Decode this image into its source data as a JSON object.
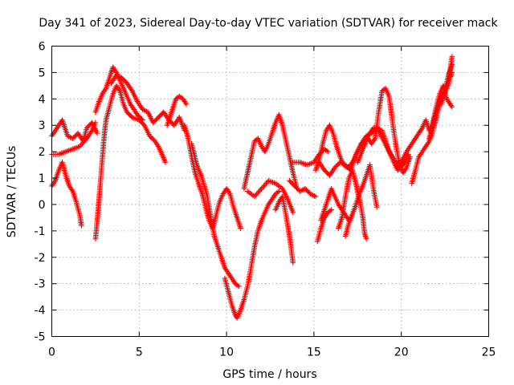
{
  "chart_data": {
    "type": "scatter",
    "title": "Day 341 of 2023, Sidereal Day-to-day VTEC variation (SDTVAR) for receiver mack",
    "xlabel": "GPS time / hours",
    "ylabel": "SDTVAR / TECUs",
    "xlim": [
      0,
      25
    ],
    "ylim": [
      -5,
      6
    ],
    "xticks": [
      0,
      5,
      10,
      15,
      20,
      25
    ],
    "yticks": [
      -5,
      -4,
      -3,
      -2,
      -1,
      0,
      1,
      2,
      3,
      4,
      5,
      6
    ],
    "grid": true,
    "marker": "+",
    "color": "#ff0000",
    "series": [
      {
        "points": [
          [
            0.0,
            2.6
          ],
          [
            0.3,
            2.9
          ],
          [
            0.6,
            3.2
          ],
          [
            0.9,
            2.6
          ],
          [
            1.2,
            2.5
          ],
          [
            1.5,
            2.7
          ],
          [
            1.8,
            2.4
          ],
          [
            2.0,
            2.9
          ],
          [
            2.3,
            3.1
          ],
          [
            2.6,
            2.7
          ]
        ]
      },
      {
        "points": [
          [
            0.0,
            0.7
          ],
          [
            0.2,
            0.9
          ],
          [
            0.4,
            1.3
          ],
          [
            0.6,
            1.6
          ],
          [
            0.8,
            1.1
          ],
          [
            1.0,
            0.7
          ],
          [
            1.2,
            0.5
          ],
          [
            1.4,
            0.1
          ],
          [
            1.6,
            -0.4
          ],
          [
            1.7,
            -0.8
          ]
        ]
      },
      {
        "points": [
          [
            0.0,
            1.9
          ],
          [
            0.4,
            1.9
          ],
          [
            0.8,
            2.0
          ],
          [
            1.2,
            2.1
          ],
          [
            1.6,
            2.2
          ],
          [
            2.0,
            2.5
          ],
          [
            2.3,
            2.8
          ],
          [
            2.5,
            3.1
          ]
        ]
      },
      {
        "points": [
          [
            2.5,
            -1.3
          ],
          [
            2.6,
            -0.6
          ],
          [
            2.7,
            0.2
          ],
          [
            2.8,
            1.0
          ],
          [
            2.9,
            1.8
          ],
          [
            3.0,
            2.6
          ],
          [
            3.1,
            3.2
          ],
          [
            3.3,
            3.7
          ],
          [
            3.5,
            4.2
          ],
          [
            3.7,
            4.5
          ],
          [
            3.9,
            4.3
          ],
          [
            4.1,
            3.8
          ],
          [
            4.3,
            3.5
          ],
          [
            4.6,
            3.3
          ],
          [
            5.0,
            3.2
          ],
          [
            5.3,
            3.0
          ],
          [
            5.6,
            2.6
          ],
          [
            5.9,
            2.4
          ],
          [
            6.1,
            2.2
          ],
          [
            6.3,
            1.9
          ],
          [
            6.5,
            1.6
          ]
        ]
      },
      {
        "points": [
          [
            2.5,
            3.5
          ],
          [
            2.7,
            3.9
          ],
          [
            2.9,
            4.2
          ],
          [
            3.1,
            4.4
          ],
          [
            3.3,
            4.8
          ],
          [
            3.5,
            5.2
          ],
          [
            3.7,
            5.0
          ],
          [
            3.9,
            4.7
          ],
          [
            4.1,
            4.4
          ],
          [
            4.3,
            4.1
          ],
          [
            4.5,
            3.8
          ],
          [
            4.7,
            3.6
          ],
          [
            4.9,
            3.4
          ],
          [
            5.2,
            3.2
          ]
        ]
      },
      {
        "points": [
          [
            3.4,
            4.6
          ],
          [
            3.7,
            4.9
          ],
          [
            4.0,
            4.8
          ],
          [
            4.3,
            4.6
          ],
          [
            4.6,
            4.3
          ],
          [
            4.9,
            3.9
          ],
          [
            5.2,
            3.6
          ],
          [
            5.5,
            3.5
          ],
          [
            5.8,
            3.1
          ],
          [
            6.1,
            3.3
          ],
          [
            6.4,
            3.5
          ],
          [
            6.7,
            3.2
          ],
          [
            7.0,
            3.0
          ],
          [
            7.3,
            3.3
          ],
          [
            7.6,
            2.8
          ]
        ]
      },
      {
        "points": [
          [
            6.6,
            3.0
          ],
          [
            6.9,
            3.6
          ],
          [
            7.1,
            4.0
          ],
          [
            7.3,
            4.1
          ],
          [
            7.5,
            4.0
          ],
          [
            7.7,
            3.8
          ]
        ]
      },
      {
        "points": [
          [
            7.6,
            3.0
          ],
          [
            7.8,
            2.5
          ],
          [
            8.0,
            1.8
          ],
          [
            8.2,
            1.2
          ],
          [
            8.4,
            0.8
          ],
          [
            8.6,
            0.4
          ],
          [
            8.8,
            -0.1
          ],
          [
            9.0,
            -0.6
          ],
          [
            9.2,
            -0.9
          ],
          [
            9.4,
            -0.4
          ],
          [
            9.6,
            0.1
          ],
          [
            9.8,
            0.4
          ],
          [
            10.0,
            0.6
          ],
          [
            10.2,
            0.4
          ],
          [
            10.4,
            -0.1
          ],
          [
            10.6,
            -0.5
          ],
          [
            10.8,
            -0.9
          ]
        ]
      },
      {
        "points": [
          [
            8.0,
            2.3
          ],
          [
            8.3,
            1.5
          ],
          [
            8.6,
            1.0
          ],
          [
            8.9,
            0.3
          ],
          [
            9.1,
            -0.5
          ],
          [
            9.3,
            -1.2
          ],
          [
            9.5,
            -1.6
          ],
          [
            9.7,
            -2.0
          ],
          [
            9.9,
            -2.4
          ],
          [
            10.1,
            -2.6
          ],
          [
            10.3,
            -2.8
          ],
          [
            10.5,
            -3.0
          ],
          [
            10.7,
            -3.1
          ]
        ]
      },
      {
        "points": [
          [
            9.9,
            -2.8
          ],
          [
            10.1,
            -3.3
          ],
          [
            10.3,
            -3.8
          ],
          [
            10.5,
            -4.2
          ],
          [
            10.6,
            -4.3
          ],
          [
            10.8,
            -4.0
          ],
          [
            11.0,
            -3.6
          ],
          [
            11.2,
            -3.1
          ],
          [
            11.4,
            -2.4
          ],
          [
            11.6,
            -1.6
          ],
          [
            11.8,
            -1.0
          ],
          [
            12.0,
            -0.6
          ],
          [
            12.2,
            -0.3
          ],
          [
            12.4,
            0.0
          ],
          [
            12.6,
            0.2
          ],
          [
            12.8,
            0.4
          ],
          [
            13.0,
            0.5
          ]
        ]
      },
      {
        "points": [
          [
            11.0,
            0.6
          ],
          [
            11.2,
            1.2
          ],
          [
            11.4,
            1.8
          ],
          [
            11.6,
            2.4
          ],
          [
            11.8,
            2.5
          ],
          [
            12.0,
            2.2
          ],
          [
            12.2,
            2.0
          ],
          [
            12.4,
            2.3
          ],
          [
            12.6,
            2.7
          ],
          [
            12.8,
            3.1
          ],
          [
            13.0,
            3.4
          ],
          [
            13.2,
            3.0
          ],
          [
            13.4,
            2.4
          ],
          [
            13.6,
            1.8
          ],
          [
            13.8,
            1.2
          ],
          [
            14.0,
            0.7
          ]
        ]
      },
      {
        "points": [
          [
            11.2,
            0.5
          ],
          [
            11.6,
            0.3
          ],
          [
            12.0,
            0.6
          ],
          [
            12.4,
            0.9
          ],
          [
            12.8,
            0.8
          ],
          [
            13.2,
            0.6
          ],
          [
            13.5,
            0.2
          ],
          [
            13.8,
            -0.3
          ]
        ]
      },
      {
        "points": [
          [
            12.8,
            -0.2
          ],
          [
            13.0,
            0.1
          ],
          [
            13.2,
            0.3
          ],
          [
            13.4,
            -0.4
          ],
          [
            13.6,
            -1.2
          ],
          [
            13.8,
            -2.2
          ]
        ]
      },
      {
        "points": [
          [
            13.8,
            1.6
          ],
          [
            14.2,
            1.6
          ],
          [
            14.6,
            1.5
          ],
          [
            15.0,
            1.6
          ],
          [
            15.3,
            1.9
          ],
          [
            15.6,
            2.1
          ],
          [
            15.8,
            2.0
          ]
        ]
      },
      {
        "points": [
          [
            13.6,
            0.9
          ],
          [
            13.9,
            0.7
          ],
          [
            14.2,
            0.5
          ],
          [
            14.5,
            0.6
          ],
          [
            14.8,
            0.4
          ],
          [
            15.1,
            0.3
          ]
        ]
      },
      {
        "points": [
          [
            15.1,
            1.3
          ],
          [
            15.3,
            1.7
          ],
          [
            15.5,
            2.3
          ],
          [
            15.7,
            2.8
          ],
          [
            15.9,
            3.0
          ],
          [
            16.1,
            2.7
          ],
          [
            16.3,
            2.2
          ],
          [
            16.5,
            1.8
          ],
          [
            16.7,
            1.5
          ],
          [
            16.9,
            1.4
          ],
          [
            17.1,
            1.5
          ],
          [
            17.3,
            1.7
          ],
          [
            17.5,
            2.0
          ],
          [
            17.7,
            2.3
          ],
          [
            17.9,
            2.4
          ],
          [
            18.1,
            2.5
          ],
          [
            18.3,
            2.3
          ],
          [
            18.5,
            2.5
          ],
          [
            18.7,
            3.5
          ],
          [
            18.9,
            4.3
          ],
          [
            19.1,
            4.4
          ],
          [
            19.3,
            4.1
          ],
          [
            19.5,
            3.1
          ],
          [
            19.7,
            2.2
          ],
          [
            19.9,
            1.5
          ],
          [
            20.1,
            1.2
          ],
          [
            20.3,
            1.4
          ],
          [
            20.5,
            1.8
          ]
        ]
      },
      {
        "points": [
          [
            15.3,
            1.6
          ],
          [
            15.6,
            1.3
          ],
          [
            15.9,
            1.1
          ],
          [
            16.2,
            1.4
          ],
          [
            16.5,
            1.6
          ],
          [
            16.8,
            1.5
          ],
          [
            17.1,
            1.3
          ],
          [
            17.4,
            1.9
          ],
          [
            17.7,
            2.3
          ],
          [
            18.0,
            2.6
          ],
          [
            18.3,
            2.7
          ],
          [
            18.6,
            2.9
          ],
          [
            18.9,
            2.8
          ],
          [
            19.2,
            2.2
          ],
          [
            19.5,
            1.7
          ],
          [
            19.8,
            1.3
          ],
          [
            20.1,
            1.5
          ],
          [
            20.4,
            1.9
          ]
        ]
      },
      {
        "points": [
          [
            15.4,
            -0.6
          ],
          [
            15.6,
            -0.2
          ],
          [
            15.8,
            0.2
          ],
          [
            16.0,
            0.6
          ],
          [
            16.2,
            0.3
          ],
          [
            16.4,
            0.0
          ],
          [
            16.6,
            -0.2
          ],
          [
            16.8,
            -0.4
          ],
          [
            17.0,
            -0.6
          ]
        ]
      },
      {
        "points": [
          [
            15.2,
            -1.4
          ],
          [
            15.4,
            -0.9
          ],
          [
            15.6,
            -0.5
          ],
          [
            15.8,
            -0.3
          ],
          [
            16.0,
            -0.2
          ]
        ]
      },
      {
        "points": [
          [
            16.4,
            -0.9
          ],
          [
            16.6,
            -0.5
          ],
          [
            16.8,
            0.3
          ],
          [
            17.0,
            1.0
          ],
          [
            17.2,
            1.3
          ],
          [
            17.4,
            0.8
          ],
          [
            17.6,
            0.2
          ],
          [
            17.8,
            -0.5
          ],
          [
            17.9,
            -1.1
          ],
          [
            18.0,
            -1.3
          ]
        ]
      },
      {
        "points": [
          [
            16.8,
            -1.2
          ],
          [
            17.0,
            -0.7
          ],
          [
            17.3,
            -0.2
          ],
          [
            17.6,
            0.4
          ],
          [
            17.9,
            0.9
          ],
          [
            18.2,
            1.5
          ],
          [
            18.4,
            0.6
          ],
          [
            18.6,
            -0.1
          ]
        ]
      },
      {
        "points": [
          [
            17.5,
            1.6
          ],
          [
            17.8,
            2.1
          ],
          [
            18.1,
            2.6
          ],
          [
            18.4,
            2.9
          ],
          [
            18.7,
            2.8
          ],
          [
            19.0,
            2.4
          ],
          [
            19.3,
            2.0
          ],
          [
            19.6,
            1.7
          ],
          [
            19.9,
            1.4
          ],
          [
            20.2,
            1.6
          ]
        ]
      },
      {
        "points": [
          [
            20.0,
            1.6
          ],
          [
            20.3,
            2.0
          ],
          [
            20.6,
            2.3
          ],
          [
            20.9,
            2.6
          ],
          [
            21.2,
            2.9
          ],
          [
            21.4,
            3.2
          ],
          [
            21.6,
            2.8
          ],
          [
            21.8,
            3.0
          ],
          [
            22.0,
            3.5
          ],
          [
            22.2,
            4.0
          ],
          [
            22.4,
            4.2
          ],
          [
            22.6,
            4.6
          ],
          [
            22.8,
            5.1
          ],
          [
            22.9,
            5.6
          ]
        ]
      },
      {
        "points": [
          [
            20.6,
            0.8
          ],
          [
            20.8,
            1.3
          ],
          [
            21.0,
            1.8
          ],
          [
            21.2,
            2.0
          ],
          [
            21.4,
            2.2
          ],
          [
            21.6,
            2.4
          ],
          [
            21.8,
            2.8
          ],
          [
            22.0,
            3.3
          ],
          [
            22.2,
            3.8
          ],
          [
            22.4,
            4.1
          ],
          [
            22.6,
            4.4
          ],
          [
            22.8,
            4.8
          ],
          [
            22.9,
            5.0
          ]
        ]
      },
      {
        "points": [
          [
            21.6,
            2.5
          ],
          [
            21.8,
            3.1
          ],
          [
            22.0,
            3.7
          ],
          [
            22.2,
            4.2
          ],
          [
            22.4,
            4.5
          ],
          [
            22.6,
            4.0
          ],
          [
            22.8,
            3.8
          ],
          [
            22.9,
            3.7
          ]
        ]
      },
      {
        "points": [
          [
            22.3,
            3.8
          ],
          [
            22.5,
            4.3
          ],
          [
            22.7,
            4.9
          ],
          [
            22.9,
            5.3
          ]
        ]
      }
    ]
  }
}
